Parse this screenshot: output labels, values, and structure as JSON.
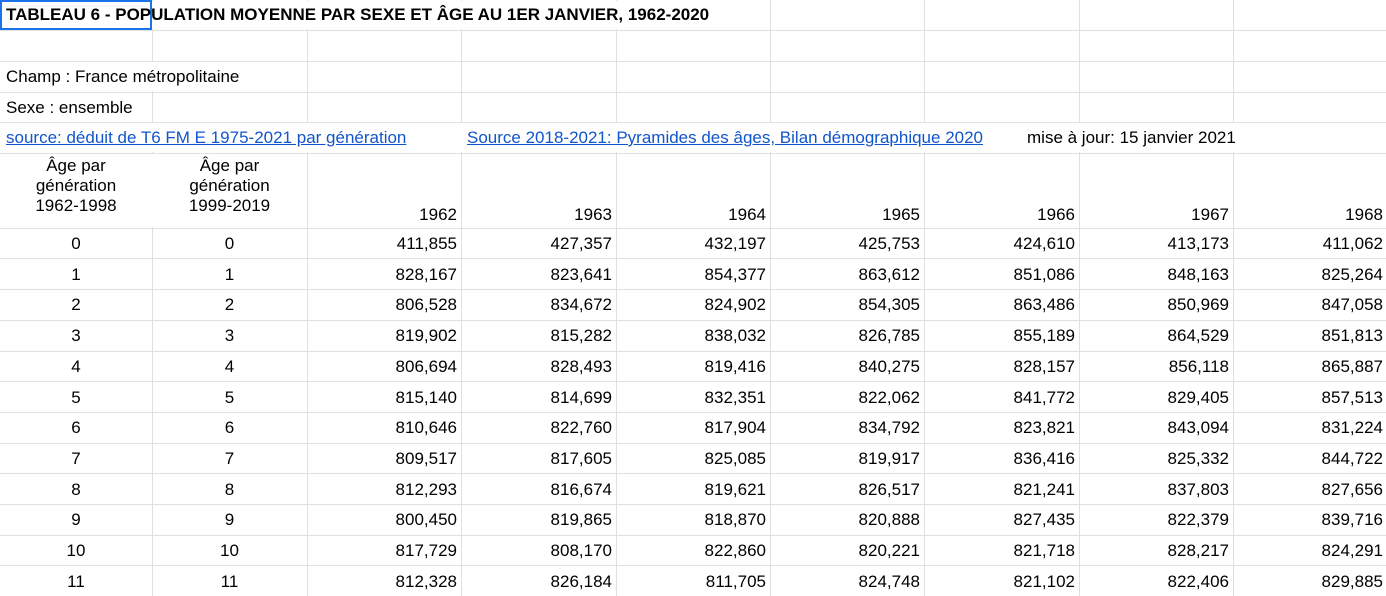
{
  "sheet": {
    "title": "TABLEAU 6 - POPULATION MOYENNE PAR SEXE ET ÂGE AU 1ER JANVIER, 1962-2020",
    "champ": "Champ : France métropolitaine",
    "sexe": "Sexe : ensemble",
    "source_link_1": "source: déduit de T6 FM E 1975-2021 par génération",
    "source_link_2": "Source 2018-2021: Pyramides des âges, Bilan démographique 2020",
    "update_note": "mise à jour: 15 janvier 2021",
    "col_a_header": [
      "Âge par",
      "génération",
      "1962-1998"
    ],
    "col_b_header": [
      "Âge par",
      "génération",
      "1999-2019"
    ],
    "years": [
      "1962",
      "1963",
      "1964",
      "1965",
      "1966",
      "1967",
      "1968"
    ],
    "rows": [
      {
        "a": "0",
        "b": "0",
        "v": [
          "411,855",
          "427,357",
          "432,197",
          "425,753",
          "424,610",
          "413,173",
          "411,062"
        ]
      },
      {
        "a": "1",
        "b": "1",
        "v": [
          "828,167",
          "823,641",
          "854,377",
          "863,612",
          "851,086",
          "848,163",
          "825,264"
        ]
      },
      {
        "a": "2",
        "b": "2",
        "v": [
          "806,528",
          "834,672",
          "824,902",
          "854,305",
          "863,486",
          "850,969",
          "847,058"
        ]
      },
      {
        "a": "3",
        "b": "3",
        "v": [
          "819,902",
          "815,282",
          "838,032",
          "826,785",
          "855,189",
          "864,529",
          "851,813"
        ]
      },
      {
        "a": "4",
        "b": "4",
        "v": [
          "806,694",
          "828,493",
          "819,416",
          "840,275",
          "828,157",
          "856,118",
          "865,887"
        ]
      },
      {
        "a": "5",
        "b": "5",
        "v": [
          "815,140",
          "814,699",
          "832,351",
          "822,062",
          "841,772",
          "829,405",
          "857,513"
        ]
      },
      {
        "a": "6",
        "b": "6",
        "v": [
          "810,646",
          "822,760",
          "817,904",
          "834,792",
          "823,821",
          "843,094",
          "831,224"
        ]
      },
      {
        "a": "7",
        "b": "7",
        "v": [
          "809,517",
          "817,605",
          "825,085",
          "819,917",
          "836,416",
          "825,332",
          "844,722"
        ]
      },
      {
        "a": "8",
        "b": "8",
        "v": [
          "812,293",
          "816,674",
          "819,621",
          "826,517",
          "821,241",
          "837,803",
          "827,656"
        ]
      },
      {
        "a": "9",
        "b": "9",
        "v": [
          "800,450",
          "819,865",
          "818,870",
          "820,888",
          "827,435",
          "822,379",
          "839,716"
        ]
      },
      {
        "a": "10",
        "b": "10",
        "v": [
          "817,729",
          "808,170",
          "822,860",
          "820,221",
          "821,718",
          "828,217",
          "824,291"
        ]
      },
      {
        "a": "11",
        "b": "11",
        "v": [
          "812,328",
          "826,184",
          "811,705",
          "824,748",
          "821,102",
          "822,406",
          "829,885"
        ]
      }
    ]
  }
}
